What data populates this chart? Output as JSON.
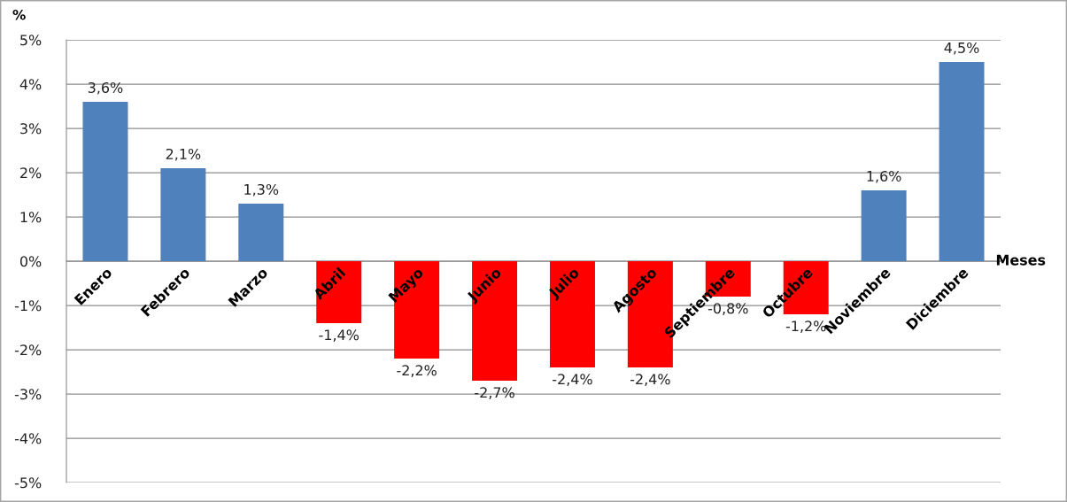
{
  "chart_data": {
    "type": "bar",
    "categories": [
      "Enero",
      "Febrero",
      "Marzo",
      "Abril",
      "Mayo",
      "Junio",
      "Julio",
      "Agosto",
      "Septiembre",
      "Octubre",
      "Noviembre",
      "Diciembre"
    ],
    "values": [
      3.6,
      2.1,
      1.3,
      -1.4,
      -2.2,
      -2.7,
      -2.4,
      -2.4,
      -0.8,
      -1.2,
      1.6,
      4.5
    ],
    "colors": [
      "#4f81bd",
      "#4f81bd",
      "#4f81bd",
      "#ff0000",
      "#ff0000",
      "#ff0000",
      "#ff0000",
      "#ff0000",
      "#ff0000",
      "#ff0000",
      "#4f81bd",
      "#4f81bd"
    ],
    "value_labels": [
      "3,6%",
      "2,1%",
      "1,3%",
      "-1,4%",
      "-2,2%",
      "-2,7%",
      "-2,4%",
      "-2,4%",
      "-0,8%",
      "-1,2%",
      "1,6%",
      "4,5%"
    ],
    "ylabel": "%",
    "xlabel": "Meses",
    "ylim": [
      -5,
      5
    ],
    "yticks": [
      {
        "value": -5,
        "label": "-5%"
      },
      {
        "value": -4,
        "label": "-4%"
      },
      {
        "value": -3,
        "label": "-3%"
      },
      {
        "value": -2,
        "label": "-2%"
      },
      {
        "value": -1,
        "label": "-1%"
      },
      {
        "value": 0,
        "label": "0%"
      },
      {
        "value": 1,
        "label": "1%"
      },
      {
        "value": 2,
        "label": "2%"
      },
      {
        "value": 3,
        "label": "3%"
      },
      {
        "value": 4,
        "label": "4%"
      },
      {
        "value": 5,
        "label": "5%"
      }
    ],
    "grid": "y"
  }
}
